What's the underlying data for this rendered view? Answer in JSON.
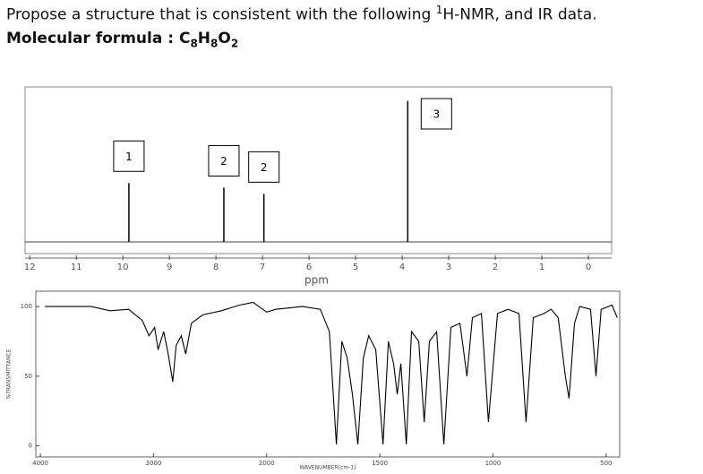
{
  "question": {
    "text": "Propose a structure that is consistent with the following ",
    "superscript": "1",
    "text_end": "H-NMR, and IR data."
  },
  "formula": {
    "label": "Molecular formula : ",
    "parts": [
      "C",
      "8",
      "H",
      "8",
      "O",
      "2"
    ]
  },
  "chart_data": [
    {
      "type": "stem",
      "x_label": "ppm",
      "x": [
        9.87,
        7.83,
        6.97,
        3.88
      ],
      "values": [
        38,
        35,
        31,
        91
      ],
      "peak_labels": [
        "1",
        "2",
        "2",
        "3"
      ],
      "xlim": [
        12.1,
        -0.5
      ],
      "xticks": [
        12,
        11,
        10,
        9,
        8,
        7,
        6,
        5,
        4,
        3,
        2,
        1,
        0
      ],
      "ylim": [
        0,
        100
      ],
      "color": "#000000"
    },
    {
      "type": "line",
      "x_label": "WAVENUMBER(cm-1)",
      "y_label": "%TRANSMITTANCE",
      "x": [
        3960,
        3550,
        3385,
        3220,
        3100,
        3040,
        2990,
        2960,
        2910,
        2870,
        2830,
        2800,
        2755,
        2715,
        2665,
        2565,
        2400,
        2240,
        2120,
        2000,
        1960,
        1842,
        1763,
        1723,
        1692,
        1668,
        1644,
        1621,
        1597,
        1573,
        1549,
        1518,
        1486,
        1462,
        1439,
        1423,
        1407,
        1383,
        1360,
        1328,
        1304,
        1281,
        1249,
        1217,
        1186,
        1146,
        1115,
        1091,
        1051,
        1020,
        980,
        933,
        885,
        854,
        822,
        775,
        743,
        712,
        680,
        664,
        640,
        617,
        569,
        545,
        522,
        474,
        451
      ],
      "values": [
        100,
        100,
        97,
        98,
        90,
        79,
        85,
        69,
        82,
        66,
        46,
        72,
        79,
        66,
        88,
        94,
        97,
        101,
        103,
        96,
        98,
        100,
        98,
        82,
        1,
        75,
        63,
        37,
        1,
        63,
        79,
        69,
        1,
        75,
        59,
        37,
        59,
        1,
        82,
        75,
        17,
        75,
        82,
        1,
        85,
        88,
        50,
        92,
        95,
        17,
        95,
        98,
        95,
        17,
        92,
        95,
        98,
        92,
        50,
        34,
        88,
        100,
        98,
        50,
        98,
        101,
        92
      ],
      "xlim": [
        4040,
        440
      ],
      "x_scale_break": 2000,
      "xticks": [
        4000,
        3000,
        2000,
        1500,
        1000,
        500
      ],
      "ylim": [
        -8,
        111
      ],
      "yticks": [
        0,
        50,
        100
      ],
      "color": "#000000"
    }
  ]
}
